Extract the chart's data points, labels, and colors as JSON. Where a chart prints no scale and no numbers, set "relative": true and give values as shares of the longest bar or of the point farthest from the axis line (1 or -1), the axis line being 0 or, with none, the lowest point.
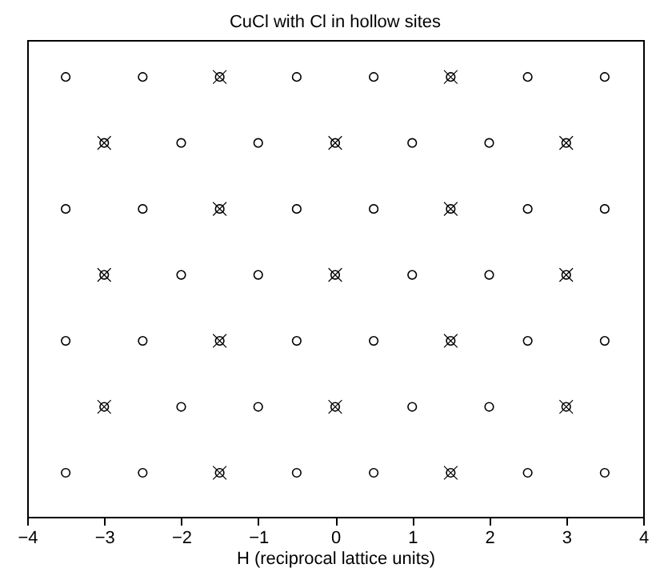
{
  "chart_data": {
    "type": "scatter",
    "title": "CuCl with Cl in hollow sites",
    "xlabel": "H (reciprocal lattice units)",
    "relative": true,
    "xlim": [
      -4,
      4
    ],
    "xticks": [
      -4,
      -3,
      -2,
      -1,
      0,
      1,
      2,
      3,
      4
    ],
    "tick_labels": "x",
    "series": [
      {
        "color": "#000000",
        "marker": "circle",
        "x": [
          -3.5,
          -2.5,
          -1.5,
          -0.5,
          0.5,
          1.5,
          2.5,
          3.5,
          -3,
          -2,
          -1,
          0,
          1,
          2,
          3,
          -3.5,
          -2.5,
          -1.5,
          -0.5,
          0.5,
          1.5,
          2.5,
          3.5,
          -3,
          -2,
          -1,
          0,
          1,
          2,
          3,
          -3.5,
          -2.5,
          -1.5,
          -0.5,
          0.5,
          1.5,
          2.5,
          3.5,
          -3,
          -2,
          -1,
          0,
          1,
          2,
          3,
          -3.5,
          -2.5,
          -1.5,
          -0.5,
          0.5,
          1.5,
          2.5,
          3.5
        ],
        "values": [
          1,
          1,
          1,
          1,
          1,
          1,
          1,
          1,
          0.85,
          0.85,
          0.85,
          0.85,
          0.85,
          0.85,
          0.85,
          0.7,
          0.7,
          0.7,
          0.7,
          0.7,
          0.7,
          0.7,
          0.7,
          0.55,
          0.55,
          0.55,
          0.55,
          0.55,
          0.55,
          0.55,
          0.4,
          0.4,
          0.4,
          0.4,
          0.4,
          0.4,
          0.4,
          0.4,
          0.25,
          0.25,
          0.25,
          0.25,
          0.25,
          0.25,
          0.25,
          0.1,
          0.1,
          0.1,
          0.1,
          0.1,
          0.1,
          0.1,
          0.1
        ]
      },
      {
        "color": "#000000",
        "marker": "cross",
        "x": [
          -1.5,
          1.5,
          -3,
          0,
          3,
          -1.5,
          1.5,
          -3,
          0,
          3,
          -1.5,
          1.5,
          -3,
          0,
          3,
          -1.5,
          1.5
        ],
        "values": [
          1,
          1,
          0.85,
          0.85,
          0.85,
          0.7,
          0.7,
          0.55,
          0.55,
          0.55,
          0.4,
          0.4,
          0.25,
          0.25,
          0.25,
          0.1,
          0.1
        ]
      }
    ]
  }
}
